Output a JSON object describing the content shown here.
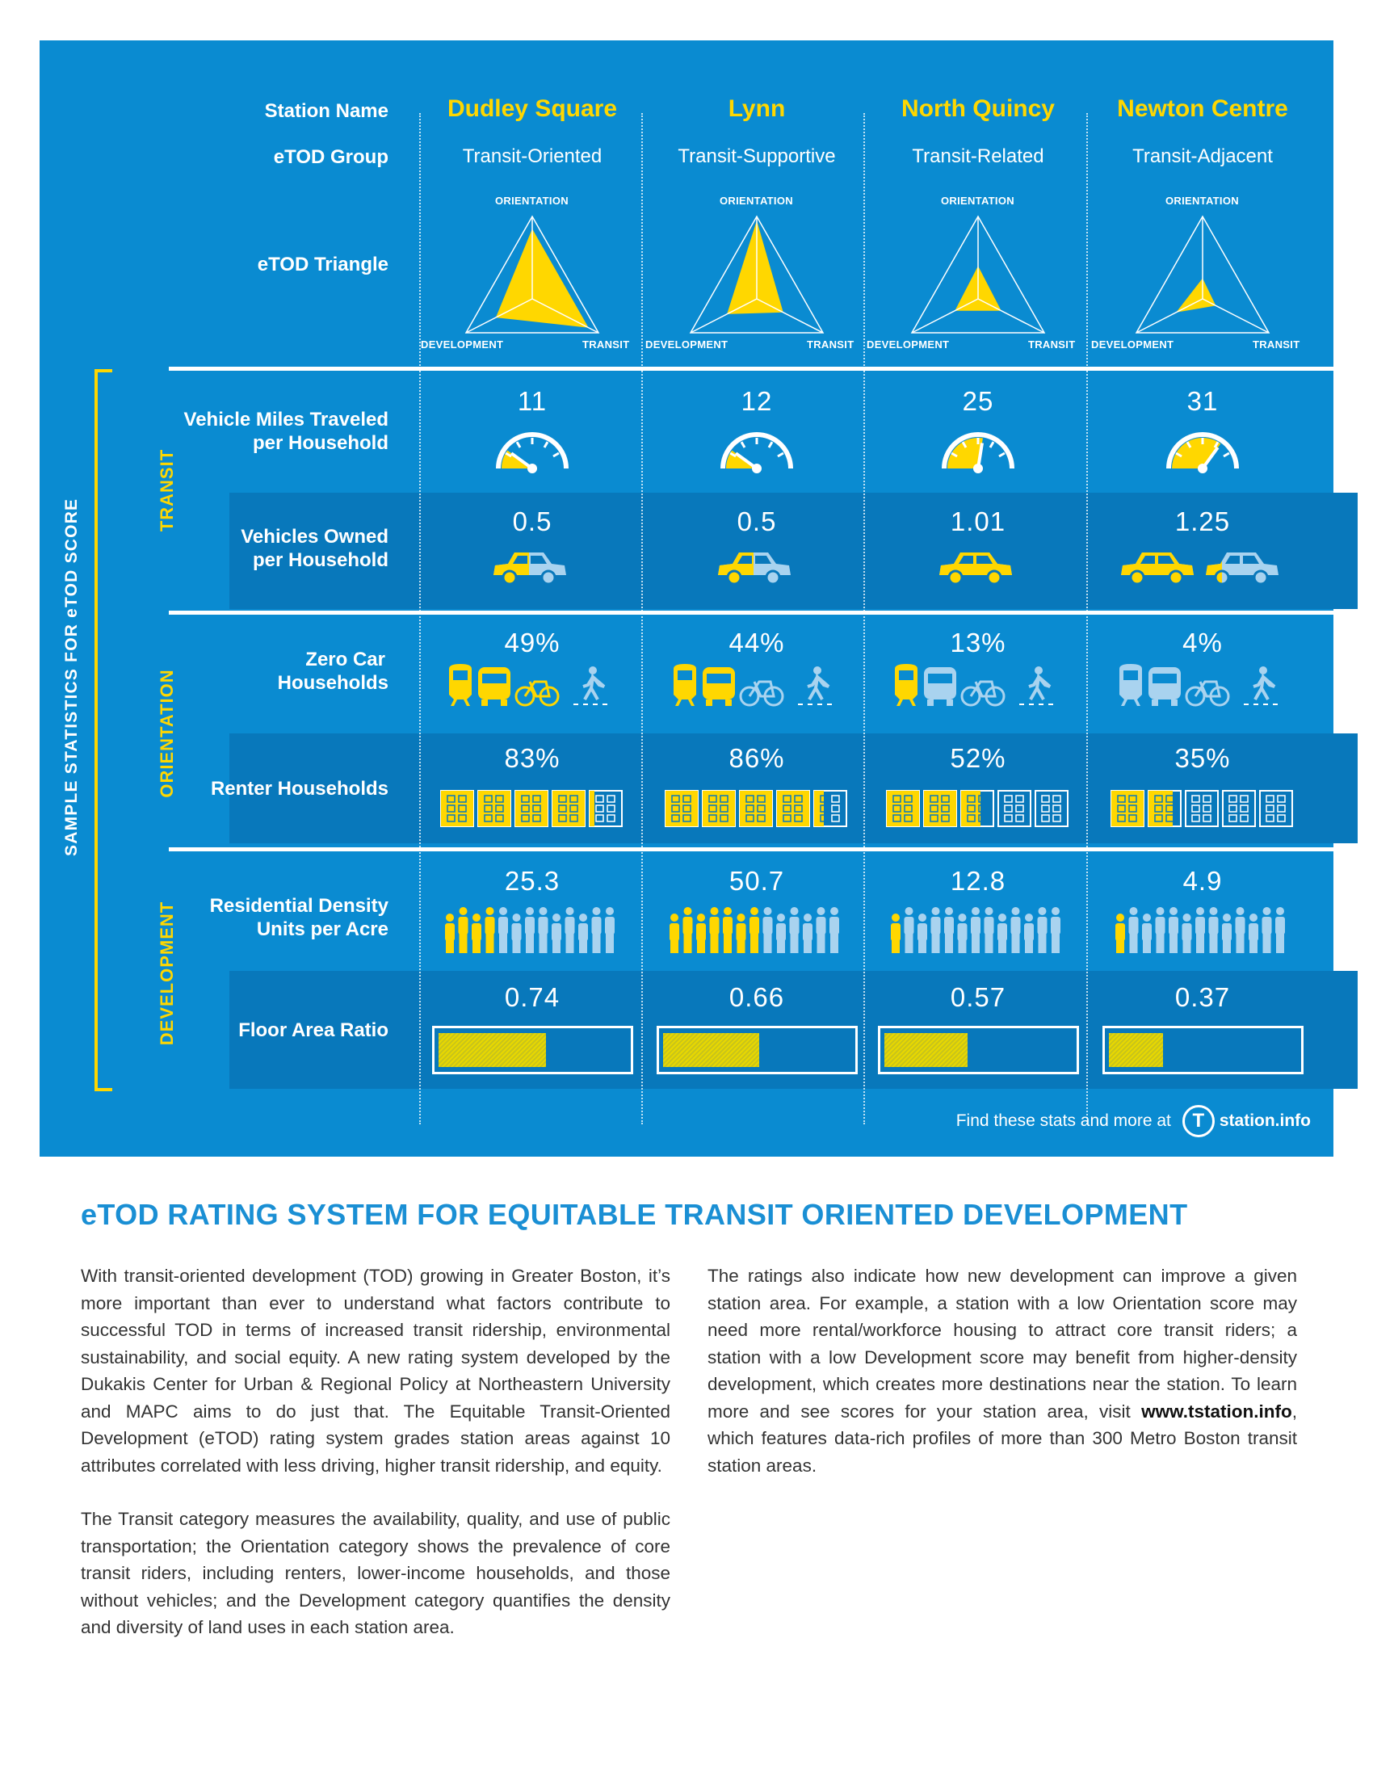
{
  "row_labels": {
    "station_name": "Station Name",
    "etod_group": "eTOD Group",
    "etod_triangle": "eTOD Triangle",
    "vmt": [
      "Vehicle Miles Traveled",
      "per Household"
    ],
    "vehicles": [
      "Vehicles Owned",
      "per Household"
    ],
    "zero_car": [
      "Zero Car",
      "Households"
    ],
    "renter": "Renter Households",
    "density": [
      "Residential Density",
      "Units per Acre"
    ],
    "far": "Floor Area Ratio"
  },
  "categories": {
    "transit": "TRANSIT",
    "orientation": "ORIENTATION",
    "development": "DEVELOPMENT"
  },
  "side_title": "SAMPLE STATISTICS FOR eTOD SCORE",
  "triangle_labels": {
    "top": "ORIENTATION",
    "left": "DEVELOPMENT",
    "right": "TRANSIT"
  },
  "stations": [
    {
      "name": "Dudley Square",
      "group": "Transit-Oriented",
      "triangle": {
        "orientation": 0.85,
        "development": 0.55,
        "transit": 0.85
      },
      "vmt": "11",
      "vmt_level": 0.2,
      "vehicles": "0.5",
      "cars_full": 0.5,
      "zero_car": "49%",
      "renter": "83%",
      "renter_frac": 0.83,
      "density": "25.3",
      "density_frac": 0.3,
      "far": "0.74",
      "far_frac": 0.74
    },
    {
      "name": "Lynn",
      "group": "Transit-Supportive",
      "triangle": {
        "orientation": 0.95,
        "development": 0.45,
        "transit": 0.4
      },
      "vmt": "12",
      "vmt_level": 0.2,
      "vehicles": "0.5",
      "cars_full": 0.5,
      "zero_car": "44%",
      "renter": "86%",
      "renter_frac": 0.86,
      "density": "50.7",
      "density_frac": 0.5,
      "far": "0.66",
      "far_frac": 0.66
    },
    {
      "name": "North Quincy",
      "group": "Transit-Related",
      "triangle": {
        "orientation": 0.4,
        "development": 0.35,
        "transit": 0.35
      },
      "vmt": "25",
      "vmt_level": 0.55,
      "vehicles": "1.01",
      "cars_full": 1.0,
      "zero_car": "13%",
      "renter": "52%",
      "renter_frac": 0.52,
      "density": "12.8",
      "density_frac": 0.1,
      "far": "0.57",
      "far_frac": 0.57
    },
    {
      "name": "Newton Centre",
      "group": "Transit-Adjacent",
      "triangle": {
        "orientation": 0.25,
        "development": 0.4,
        "transit": 0.2
      },
      "vmt": "31",
      "vmt_level": 0.7,
      "vehicles": "1.25",
      "cars_full": 1.25,
      "zero_car": "4%",
      "renter": "35%",
      "renter_frac": 0.35,
      "density": "4.9",
      "density_frac": 0.05,
      "far": "0.37",
      "far_frac": 0.37
    }
  ],
  "footer": {
    "text": "Find these stats and more at",
    "brand": "station.info",
    "logo_letter": "T"
  },
  "article": {
    "title": "eTOD RATING SYSTEM FOR EQUITABLE TRANSIT ORIENTED DEVELOPMENT",
    "p1": "With transit-oriented development (TOD) growing in Greater Boston, it’s more important than ever to understand what factors contribute to successful TOD in terms of increased transit ridership, environmental sustainability, and social equity. A new rating system developed by the Dukakis Center for Urban & Regional Policy at Northeastern University and MAPC aims to do just that. The Equitable Transit-Oriented Development (eTOD) rating system grades station areas against 10 attributes correlated with less driving, higher transit ridership, and equity.",
    "p2": "The Transit category measures the availability, quality, and use of public transportation; the Orientation category shows the prevalence of core transit riders, including renters, lower-income households, and those without vehicles; and the Development category quantifies the density and diversity of land uses in each station area.",
    "p3_pre": "The ratings also indicate how new development can improve a given station area. For example, a station with a low Orientation score may need more rental/workforce housing to attract core transit riders; a station with a low Development score may benefit from higher-density development, which creates more destinations near the station. To learn more and see scores for your station area, visit",
    "p3_link": "www.tstation.info",
    "p3_post": ", which features data-rich profiles of more than 300 Metro Boston transit station areas."
  }
}
